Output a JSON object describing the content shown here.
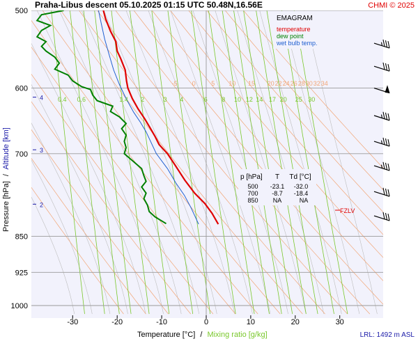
{
  "header": {
    "title": "Praha-Libus   descent   05.10.2025 01:15 UTC   50.48N,16.56E",
    "copyright": "CHMI © 2025"
  },
  "legend": {
    "title": "EMAGRAM",
    "items": [
      {
        "label": "temperature",
        "color": "#e00000"
      },
      {
        "label": "dew point",
        "color": "#008000"
      },
      {
        "label": "wet bulb temp.",
        "color": "#1f5fd0"
      }
    ]
  },
  "table": {
    "headers": [
      "p [hPa]",
      "T",
      "Td [°C]"
    ],
    "rows": [
      [
        "500",
        "-23.1",
        "-32.0"
      ],
      [
        "700",
        "-8.7",
        "-18.4"
      ],
      [
        "850",
        "NA",
        "NA"
      ]
    ]
  },
  "fzlv_label": "FZLV",
  "lrl_label": "LRL: 1492 m ASL",
  "axes": {
    "ylabel_pressure": "Pressure [hPa]",
    "ylabel_sep": "/",
    "ylabel_altitude": "Altitude [km]",
    "xlabel_temp": "Temperature [°C]",
    "xlabel_sep": "/",
    "xlabel_mixing": "Mixing ratio [g/kg]"
  },
  "colors": {
    "temperature": "#e00000",
    "dewpoint": "#008000",
    "wetbulb": "#1f5fd0",
    "mixing_ratio": "#7ac82c",
    "dry_adiabat": "#f2a676",
    "moist_adiabat": "#bdbdbd",
    "plot_bg": "#f2f2fc"
  },
  "chart_data": {
    "type": "line",
    "x_range": [
      -40,
      40
    ],
    "pressure_range": [
      500,
      1000
    ],
    "pressure_ticks": [
      500,
      600,
      700,
      850,
      925,
      1000
    ],
    "temperature_ticks": [
      -30,
      -20,
      -10,
      0,
      10,
      20,
      30
    ],
    "altitude_ticks_km": [
      {
        "label": "4",
        "p": 616
      },
      {
        "label": "3",
        "p": 697
      },
      {
        "label": "2",
        "p": 792
      }
    ],
    "mixing_ratio_labels": [
      "0.4",
      "0.6",
      "1.4",
      "2",
      "3",
      "4",
      "6",
      "8",
      "10",
      "12",
      "14",
      "17",
      "20",
      "25",
      "30"
    ],
    "dry_adiabat_labels": [
      "-5",
      "0",
      "5",
      "10",
      "15",
      "20",
      "22",
      "24",
      "26",
      "28",
      "30",
      "32",
      "34"
    ],
    "series": [
      {
        "name": "temperature",
        "points": [
          [
            -23.1,
            500
          ],
          [
            -22.6,
            510
          ],
          [
            -21.5,
            525
          ],
          [
            -20.3,
            538
          ],
          [
            -20.0,
            550
          ],
          [
            -19.2,
            560
          ],
          [
            -18.2,
            575
          ],
          [
            -17.9,
            590
          ],
          [
            -17.6,
            600
          ],
          [
            -16.6,
            615
          ],
          [
            -15.3,
            630
          ],
          [
            -13.8,
            645
          ],
          [
            -12.5,
            660
          ],
          [
            -11.5,
            672
          ],
          [
            -10.6,
            685
          ],
          [
            -8.7,
            700
          ],
          [
            -6.9,
            720
          ],
          [
            -4.8,
            745
          ],
          [
            -2.6,
            768
          ],
          [
            -0.3,
            787
          ],
          [
            1.3,
            805
          ],
          [
            2.7,
            826
          ]
        ]
      },
      {
        "name": "dew point",
        "points": [
          [
            -32.0,
            500
          ],
          [
            -37.0,
            505
          ],
          [
            -38.0,
            512
          ],
          [
            -35.0,
            518
          ],
          [
            -37.0,
            524
          ],
          [
            -38.0,
            532
          ],
          [
            -36.0,
            538
          ],
          [
            -37.0,
            544
          ],
          [
            -36.0,
            550
          ],
          [
            -34.0,
            558
          ],
          [
            -33.0,
            566
          ],
          [
            -34.0,
            574
          ],
          [
            -31.0,
            582
          ],
          [
            -30.0,
            590
          ],
          [
            -28.0,
            598
          ],
          [
            -26.0,
            602
          ],
          [
            -25.5,
            610
          ],
          [
            -24.5,
            618
          ],
          [
            -21.0,
            626
          ],
          [
            -21.5,
            634
          ],
          [
            -19.5,
            642
          ],
          [
            -18.0,
            652
          ],
          [
            -19.0,
            660
          ],
          [
            -18.0,
            670
          ],
          [
            -18.4,
            680
          ],
          [
            -18.0,
            690
          ],
          [
            -18.4,
            700
          ],
          [
            -16.5,
            712
          ],
          [
            -14.5,
            725
          ],
          [
            -14.0,
            737
          ],
          [
            -13.5,
            747
          ],
          [
            -14.5,
            757
          ],
          [
            -13.5,
            768
          ],
          [
            -14.0,
            778
          ],
          [
            -13.2,
            790
          ],
          [
            -12.8,
            802
          ],
          [
            -11.5,
            812
          ],
          [
            -9.0,
            825
          ]
        ]
      },
      {
        "name": "wet bulb temp.",
        "points": [
          [
            -24.2,
            500
          ],
          [
            -23.6,
            515
          ],
          [
            -22.8,
            535
          ],
          [
            -21.8,
            555
          ],
          [
            -20.8,
            575
          ],
          [
            -19.5,
            595
          ],
          [
            -18.0,
            615
          ],
          [
            -16.3,
            635
          ],
          [
            -14.8,
            650
          ],
          [
            -13.5,
            665
          ],
          [
            -12.5,
            680
          ],
          [
            -11.2,
            700
          ],
          [
            -8.7,
            725
          ],
          [
            -6.8,
            750
          ],
          [
            -4.9,
            772
          ],
          [
            -3.4,
            795
          ],
          [
            -1.7,
            826
          ]
        ]
      }
    ],
    "wind_barbs": [
      {
        "p": 540,
        "direction": 290,
        "speed_kt": 35
      },
      {
        "p": 570,
        "direction": 285,
        "speed_kt": 30
      },
      {
        "p": 600,
        "direction": 280,
        "speed_kt": 50
      },
      {
        "p": 640,
        "direction": 285,
        "speed_kt": 35
      },
      {
        "p": 680,
        "direction": 290,
        "speed_kt": 35
      },
      {
        "p": 720,
        "direction": 295,
        "speed_kt": 35
      },
      {
        "p": 765,
        "direction": 295,
        "speed_kt": 30
      },
      {
        "p": 810,
        "direction": 280,
        "speed_kt": 30
      }
    ]
  }
}
